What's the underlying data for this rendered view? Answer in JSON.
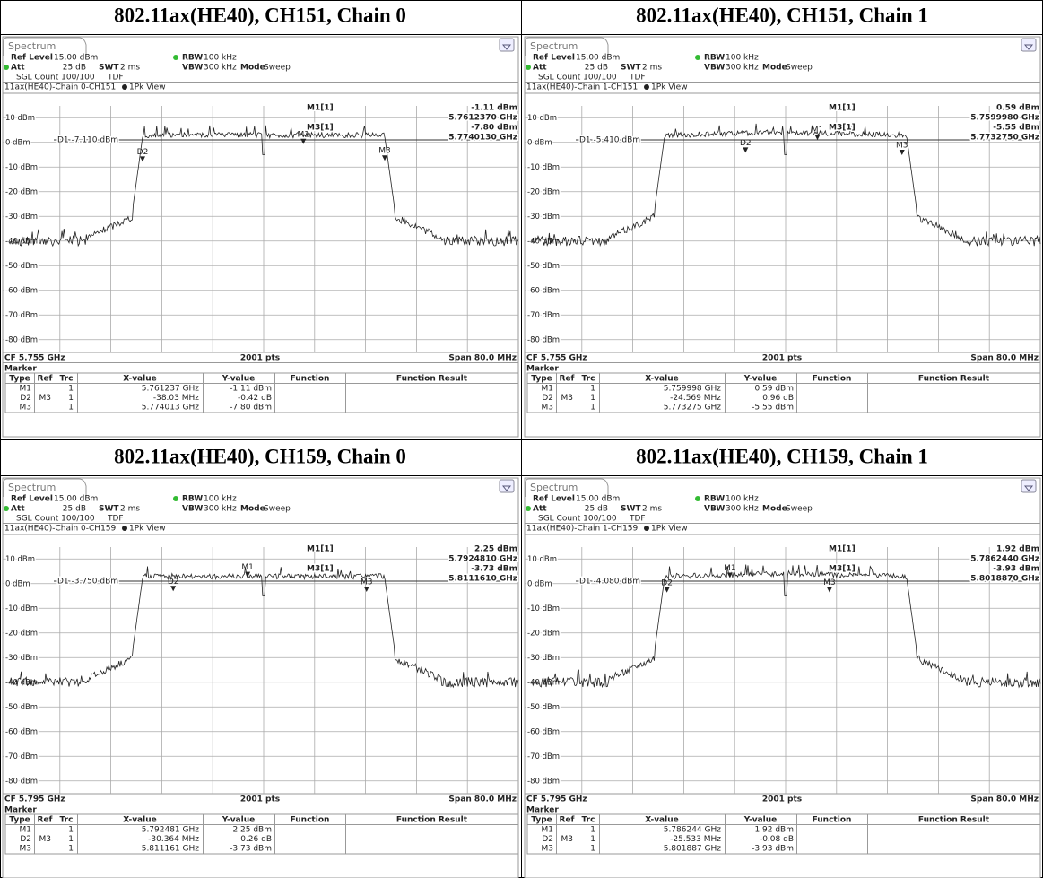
{
  "common": {
    "tab": "Spectrum",
    "ref_level_label": "Ref Level",
    "ref_level": "15.00 dBm",
    "rbw_label": "RBW",
    "rbw": "100 kHz",
    "att_label": "Att",
    "att": "25 dB",
    "swt_label": "SWT",
    "swt": "2 ms",
    "vbw_label": "VBW",
    "vbw": "300 kHz",
    "mode_label": "Mode",
    "mode": "Sweep",
    "count": "SGL Count 100/100",
    "tdf": "TDF",
    "view": "1Pk View",
    "y_labels": [
      "10 dBm",
      "0 dBm",
      "-10 dBm",
      "-20 dBm",
      "-30 dBm",
      "-40 dBm",
      "-50 dBm",
      "-60 dBm",
      "-70 dBm",
      "-80 dBm"
    ],
    "points": "2001 pts",
    "span": "Span 80.0 MHz",
    "marker_title": "Marker",
    "table_headers": [
      "Type",
      "Ref",
      "Trc",
      "X-value",
      "Y-value",
      "Function",
      "Function Result"
    ]
  },
  "panels": [
    {
      "title": "802.11ax(HE40), CH151, Chain 0",
      "trace": "11ax(HE40)-Chain 0-CH151",
      "cf": "CF 5.755 GHz",
      "d1": "D1 -7.110 dBm",
      "readout": [
        {
          "name": "M1[1]",
          "level": "-1.11 dBm",
          "freq": "5.7612370 GHz"
        },
        {
          "name": "M3[1]",
          "level": "-7.80 dBm",
          "freq": "5.7740130 GHz"
        }
      ],
      "markers": [
        {
          "type": "M1",
          "trc": 1,
          "x": "5.761237 GHz",
          "y": "-1.11 dBm"
        },
        {
          "type": "D2",
          "ref": "M3",
          "trc": 1,
          "x": "-38.03 MHz",
          "y": "-0.42 dB"
        },
        {
          "type": "M3",
          "trc": 1,
          "x": "5.774013 GHz",
          "y": "-7.80 dBm"
        }
      ]
    },
    {
      "title": "802.11ax(HE40), CH151, Chain 1",
      "trace": "11ax(HE40)-Chain 1-CH151",
      "cf": "CF 5.755 GHz",
      "d1": "D1 -5.410 dBm",
      "readout": [
        {
          "name": "M1[1]",
          "level": "0.59 dBm",
          "freq": "5.7599980 GHz"
        },
        {
          "name": "M3[1]",
          "level": "-5.55 dBm",
          "freq": "5.7732750 GHz"
        }
      ],
      "markers": [
        {
          "type": "M1",
          "trc": 1,
          "x": "5.759998 GHz",
          "y": "0.59 dBm"
        },
        {
          "type": "D2",
          "ref": "M3",
          "trc": 1,
          "x": "-24.569 MHz",
          "y": "0.96 dB"
        },
        {
          "type": "M3",
          "trc": 1,
          "x": "5.773275 GHz",
          "y": "-5.55 dBm"
        }
      ]
    },
    {
      "title": "802.11ax(HE40), CH159, Chain 0",
      "trace": "11ax(HE40)-Chain 0-CH159",
      "cf": "CF 5.795 GHz",
      "d1": "D1 -3.750 dBm",
      "readout": [
        {
          "name": "M1[1]",
          "level": "2.25 dBm",
          "freq": "5.7924810 GHz"
        },
        {
          "name": "M3[1]",
          "level": "-3.73 dBm",
          "freq": "5.8111610 GHz"
        }
      ],
      "markers": [
        {
          "type": "M1",
          "trc": 1,
          "x": "5.792481 GHz",
          "y": "2.25 dBm"
        },
        {
          "type": "D2",
          "ref": "M3",
          "trc": 1,
          "x": "-30.364 MHz",
          "y": "0.26 dB"
        },
        {
          "type": "M3",
          "trc": 1,
          "x": "5.811161 GHz",
          "y": "-3.73 dBm"
        }
      ]
    },
    {
      "title": "802.11ax(HE40), CH159, Chain 1",
      "trace": "11ax(HE40)-Chain 1-CH159",
      "cf": "CF 5.795 GHz",
      "d1": "D1 -4.080 dBm",
      "readout": [
        {
          "name": "M1[1]",
          "level": "1.92 dBm",
          "freq": "5.7862440 GHz"
        },
        {
          "name": "M3[1]",
          "level": "-3.93 dBm",
          "freq": "5.8018870 GHz"
        }
      ],
      "markers": [
        {
          "type": "M1",
          "trc": 1,
          "x": "5.786244 GHz",
          "y": "1.92 dBm"
        },
        {
          "type": "D2",
          "ref": "M3",
          "trc": 1,
          "x": "-25.533 MHz",
          "y": "-0.08 dB"
        },
        {
          "type": "M3",
          "trc": 1,
          "x": "5.801887 GHz",
          "y": "-3.93 dBm"
        }
      ]
    }
  ]
}
